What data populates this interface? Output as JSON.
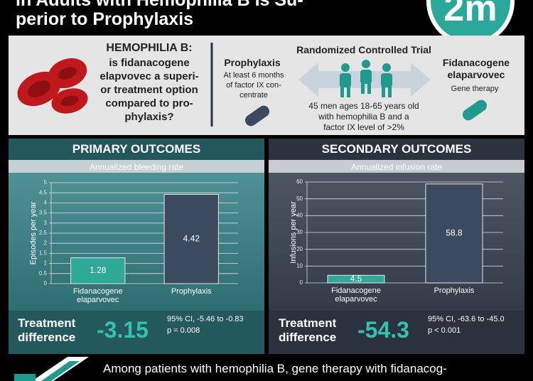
{
  "header": {
    "title_lines": [
      "in Adults with Hemophilia B Is Su-",
      "perior to Prophylaxis"
    ],
    "logo": "2m"
  },
  "question": {
    "heading": "HEMOPHILIA B:",
    "lines": [
      "is fidanacogene",
      "elapvovec a superi-",
      "or treatment option",
      "compared to pro-",
      "phylaxis?"
    ]
  },
  "comparator": {
    "name": "Prophylaxis",
    "lines": [
      "At least 6 months",
      "of factor IX con-",
      "centrate"
    ]
  },
  "trial": {
    "title": "Randomized Controlled Trial",
    "lines": [
      "45 men ages 18-65 years old",
      "with hemophilia B and a",
      "factor IX level of >2%"
    ]
  },
  "intervention": {
    "name_lines": [
      "Fidanacogene",
      "elaparvovec"
    ],
    "description": "Gene therapy"
  },
  "chart_data": [
    {
      "type": "bar",
      "title": "PRIMARY OUTCOMES",
      "subtitle": "Annualized bleeding rate",
      "y_label": "Episodes per year",
      "categories": [
        "Fidanacogene elaparvovec",
        "Prophylaxis"
      ],
      "values": [
        1.28,
        4.42
      ],
      "colors": [
        "#2fa898",
        "#3b4a5e"
      ],
      "ylim": [
        0,
        5
      ],
      "yticks": [
        0,
        0.5,
        1,
        1.5,
        2,
        2.5,
        3,
        3.5,
        4,
        4.5,
        5
      ],
      "grid": true,
      "treatment_difference": {
        "label": "Treatment difference",
        "value": -3.15,
        "ci": "95% CI, -5.46 to -0.83",
        "p": "p = 0.008"
      }
    },
    {
      "type": "bar",
      "title": "SECONDARY OUTCOMES",
      "subtitle": "Annualized infusion rate",
      "y_label": "Infusions per year",
      "categories": [
        "Fidanacogene elaparvovec",
        "Prophylaxis"
      ],
      "values": [
        4.5,
        58.8
      ],
      "colors": [
        "#2fa898",
        "#3b4a5e"
      ],
      "ylim": [
        0,
        60
      ],
      "yticks": [
        0,
        10,
        20,
        30,
        40,
        50,
        60
      ],
      "grid": true,
      "treatment_difference": {
        "label": "Treatment difference",
        "value": -54.3,
        "ci": "95% CI, -63.6 to -45.0",
        "p": "p < 0.001"
      }
    }
  ],
  "footer": {
    "text": "Among patients with hemophilia B, gene therapy with fidanacog-"
  }
}
